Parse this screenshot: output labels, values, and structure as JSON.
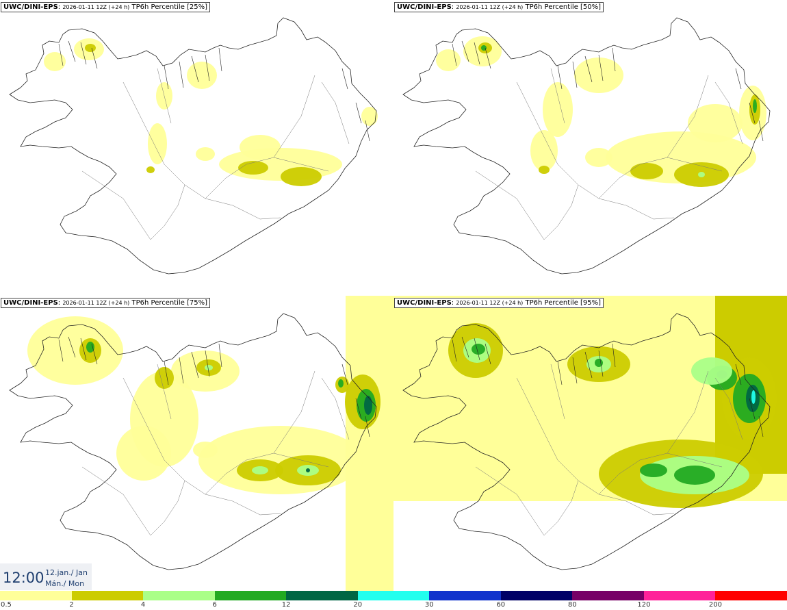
{
  "panels": [
    {
      "source": "UWC/DINI-EPS",
      "run": "2026-01-11 12Z (+24 h)",
      "field": "TP6h Percentile [25%]"
    },
    {
      "source": "UWC/DINI-EPS",
      "run": "2026-01-11 12Z (+24 h)",
      "field": "TP6h Percentile [50%]"
    },
    {
      "source": "UWC/DINI-EPS",
      "run": "2026-01-11 12Z (+24 h)",
      "field": "TP6h Percentile [75%]"
    },
    {
      "source": "UWC/DINI-EPS",
      "run": "2026-01-11 12Z (+24 h)",
      "field": "TP6h Percentile [95%]"
    }
  ],
  "valid_time": {
    "time": "12:00",
    "date_line1": "12.jan./ Jan",
    "date_line2": "Mán./ Mon"
  },
  "legend": {
    "ticks": [
      "0.5",
      "2",
      "4",
      "6",
      "12",
      "20",
      "30",
      "60",
      "80",
      "120",
      "200"
    ],
    "colors": [
      "#ffff99",
      "#cccc00",
      "#aaff88",
      "#22aa22",
      "#006644",
      "#22ffee",
      "#1133cc",
      "#000066",
      "#770066",
      "#ff2299",
      "#ff0000"
    ]
  },
  "map_colors": {
    "light": "#ffff99",
    "mid": "#cccc00",
    "pale_green": "#aaff88",
    "green": "#22aa22",
    "dark_green": "#006644",
    "cyan": "#22ffee",
    "outline": "#222222"
  }
}
